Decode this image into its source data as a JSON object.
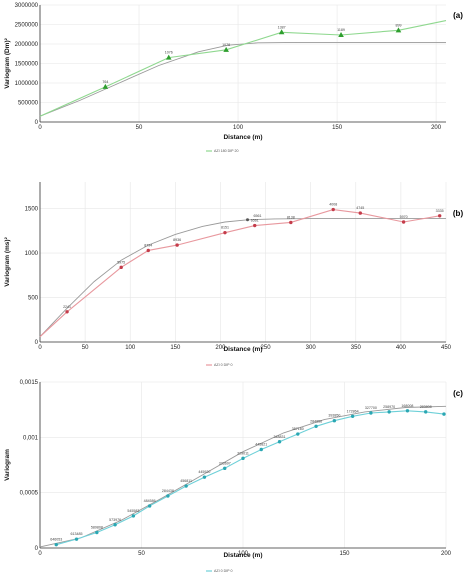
{
  "chart_data": [
    {
      "type": "line",
      "panel_label": "(a)",
      "xlabel": "Distance (m)",
      "ylabel": "Variogram (Dm)²",
      "xlim": [
        0,
        205
      ],
      "ylim": [
        0,
        3000000
      ],
      "xticks": [
        "0",
        "50",
        "100",
        "150",
        "200"
      ],
      "xtick_values": [
        0,
        50,
        100,
        150,
        200
      ],
      "yticks": [
        "0",
        "500000",
        "1000000",
        "1500000",
        "2000000",
        "2500000",
        "3000000"
      ],
      "ytick_values": [
        0,
        500000,
        1000000,
        1500000,
        2000000,
        2500000,
        3000000
      ],
      "legend": "AZI 180 DIP 20",
      "colors": {
        "experimental": "#8fd88f",
        "marker": "#2e9e2e",
        "model": "#9a9a9a"
      },
      "marker": "triangle",
      "series": [
        {
          "role": "experimental",
          "x": [
            33,
            65,
            94,
            122,
            152,
            181
          ],
          "y": [
            900000,
            1650000,
            1850000,
            2300000,
            2230000,
            2350000
          ],
          "labels": [
            "764",
            "1076",
            "1078",
            "1387",
            "1189",
            "899"
          ]
        },
        {
          "role": "model",
          "x": [
            0,
            20,
            40,
            60,
            80,
            95,
            110,
            130,
            160,
            205
          ],
          "y": [
            150000,
            550000,
            1000000,
            1450000,
            1800000,
            1970000,
            2030000,
            2040000,
            2040000,
            2040000
          ]
        },
        {
          "role": "fit",
          "x": [
            0,
            33,
            65,
            94,
            122,
            152,
            181,
            205
          ],
          "y": [
            150000,
            900000,
            1650000,
            1850000,
            2300000,
            2230000,
            2350000,
            2600000
          ]
        }
      ]
    },
    {
      "type": "line",
      "panel_label": "(b)",
      "xlabel": "Distance (m)",
      "ylabel": "Variogram (ms)²",
      "xlim": [
        0,
        450
      ],
      "ylim": [
        0,
        1800
      ],
      "xticks": [
        "0",
        "50",
        "100",
        "150",
        "200",
        "250",
        "300",
        "350",
        "400",
        "450"
      ],
      "xtick_values": [
        0,
        50,
        100,
        150,
        200,
        250,
        300,
        350,
        400,
        450
      ],
      "yticks": [
        "0",
        "500",
        "1000",
        "1500"
      ],
      "ytick_values": [
        0,
        500,
        1000,
        1500
      ],
      "legend": "AZI 0 DIP 0",
      "colors": {
        "experimental": "#e8989e",
        "marker": "#c43c4a",
        "model": "#9a9a9a"
      },
      "marker": "circle",
      "series": [
        {
          "role": "experimental",
          "x": [
            30,
            90,
            120,
            152,
            205,
            238,
            278,
            325,
            355,
            403,
            443
          ],
          "y": [
            340,
            840,
            1030,
            1090,
            1230,
            1310,
            1345,
            1490,
            1450,
            1350,
            1420
          ],
          "labels": [
            "2241",
            "5975",
            "8794",
            "8936",
            "8151",
            "6561",
            "8138",
            "4008",
            "4745",
            "5970",
            "3335"
          ]
        },
        {
          "role": "model",
          "x": [
            0,
            30,
            60,
            90,
            120,
            150,
            180,
            205,
            230,
            260,
            300,
            360,
            420,
            450
          ],
          "y": [
            60,
            380,
            680,
            920,
            1090,
            1210,
            1300,
            1350,
            1375,
            1385,
            1388,
            1390,
            1390,
            1390
          ],
          "labels": [
            "",
            "",
            "",
            "",
            "",
            "",
            "",
            "",
            "6561",
            "",
            "",
            "",
            "",
            ""
          ]
        },
        {
          "role": "fit",
          "x": [
            0,
            30,
            90,
            120,
            152,
            205,
            238,
            278,
            325,
            355,
            403,
            443
          ],
          "y": [
            60,
            340,
            840,
            1030,
            1090,
            1230,
            1310,
            1345,
            1490,
            1450,
            1350,
            1420
          ]
        }
      ]
    },
    {
      "type": "line",
      "panel_label": "(c)",
      "xlabel": "Distance (m)",
      "ylabel": "Variogram",
      "xlim": [
        0,
        200
      ],
      "ylim": [
        0,
        0.0015
      ],
      "xticks": [
        "0",
        "50",
        "100",
        "150",
        "200"
      ],
      "xtick_values": [
        0,
        50,
        100,
        150,
        200
      ],
      "yticks": [
        "0",
        "0,0005",
        "0,001",
        "0,0015"
      ],
      "ytick_values": [
        0,
        0.0005,
        0.001,
        0.0015
      ],
      "legend": "AZI 0 DIP 0",
      "colors": {
        "experimental": "#6ed0d8",
        "marker": "#2aa7b3",
        "model": "#9a9a9a"
      },
      "marker": "circle",
      "series": [
        {
          "role": "experimental",
          "x": [
            8,
            18,
            28,
            37,
            46,
            54,
            63,
            72,
            81,
            91,
            100,
            109,
            118,
            127,
            136,
            145,
            154,
            163,
            172,
            181,
            190,
            199
          ],
          "y": [
            3e-05,
            8e-05,
            0.00014,
            0.00021,
            0.00029,
            0.00038,
            0.00047,
            0.00056,
            0.00064,
            0.00072,
            0.00081,
            0.00089,
            0.00096,
            0.00103,
            0.0011,
            0.00115,
            0.00119,
            0.00122,
            0.00123,
            0.00124,
            0.00123,
            0.00121
          ],
          "labels": [
            "646053",
            "613485",
            "589808",
            "573976",
            "545583",
            "484586",
            "284438",
            "456811",
            "445920",
            "333697",
            "329011",
            "445821",
            "348831",
            "357160",
            "284856",
            "393850",
            "172864",
            "327700",
            "258970",
            "168008",
            "283808",
            ""
          ]
        },
        {
          "role": "model",
          "x": [
            0,
            20,
            40,
            60,
            80,
            100,
            120,
            140,
            160,
            180,
            200
          ],
          "y": [
            1e-05,
            9e-05,
            0.00025,
            0.00045,
            0.00066,
            0.00087,
            0.00104,
            0.00116,
            0.00123,
            0.00127,
            0.00128
          ]
        },
        {
          "role": "fit",
          "x": [
            8,
            18,
            28,
            37,
            46,
            54,
            63,
            72,
            81,
            91,
            100,
            109,
            118,
            127,
            136,
            145,
            154,
            163,
            172,
            181,
            190,
            199
          ],
          "y": [
            3e-05,
            8e-05,
            0.00014,
            0.00021,
            0.00029,
            0.00038,
            0.00047,
            0.00056,
            0.00064,
            0.00072,
            0.00081,
            0.00089,
            0.00096,
            0.00103,
            0.0011,
            0.00115,
            0.00119,
            0.00122,
            0.00123,
            0.00124,
            0.00123,
            0.00121
          ]
        }
      ]
    }
  ]
}
